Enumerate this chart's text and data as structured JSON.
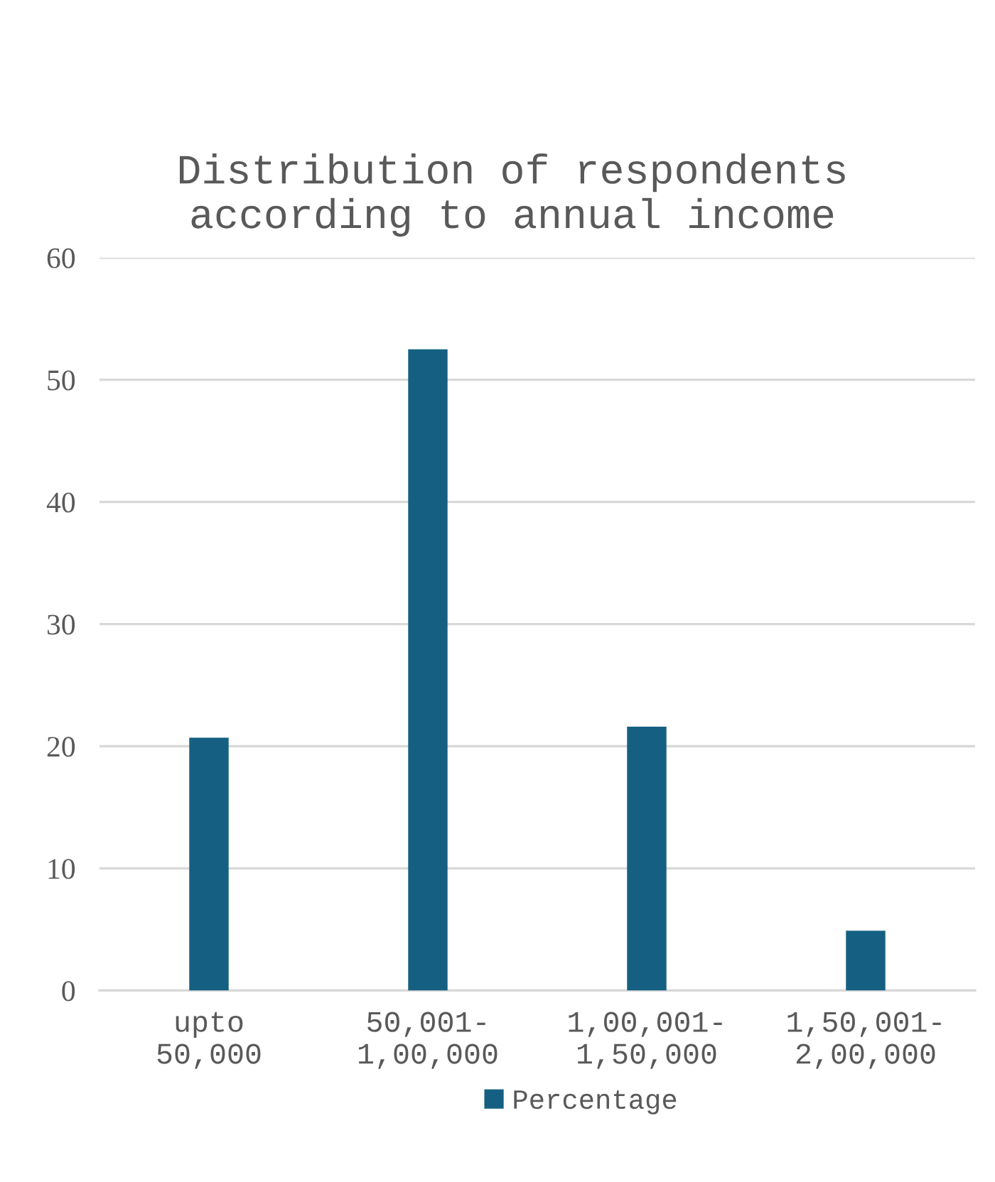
{
  "chart_data": {
    "type": "bar",
    "title": "Distribution of respondents according to annual income",
    "categories": [
      "upto\n50,000",
      "50,001-\n1,00,000",
      "1,00,001-\n1,50,000",
      "1,50,001-\n2,00,000"
    ],
    "series": [
      {
        "name": "Percentage",
        "color": "#156082",
        "values": [
          20.7,
          52.5,
          21.6,
          4.9
        ]
      }
    ],
    "ylim": [
      0,
      60
    ],
    "yticks": [
      0,
      10,
      20,
      30,
      40,
      50,
      60
    ],
    "grid": "y",
    "legend": "bottom"
  }
}
